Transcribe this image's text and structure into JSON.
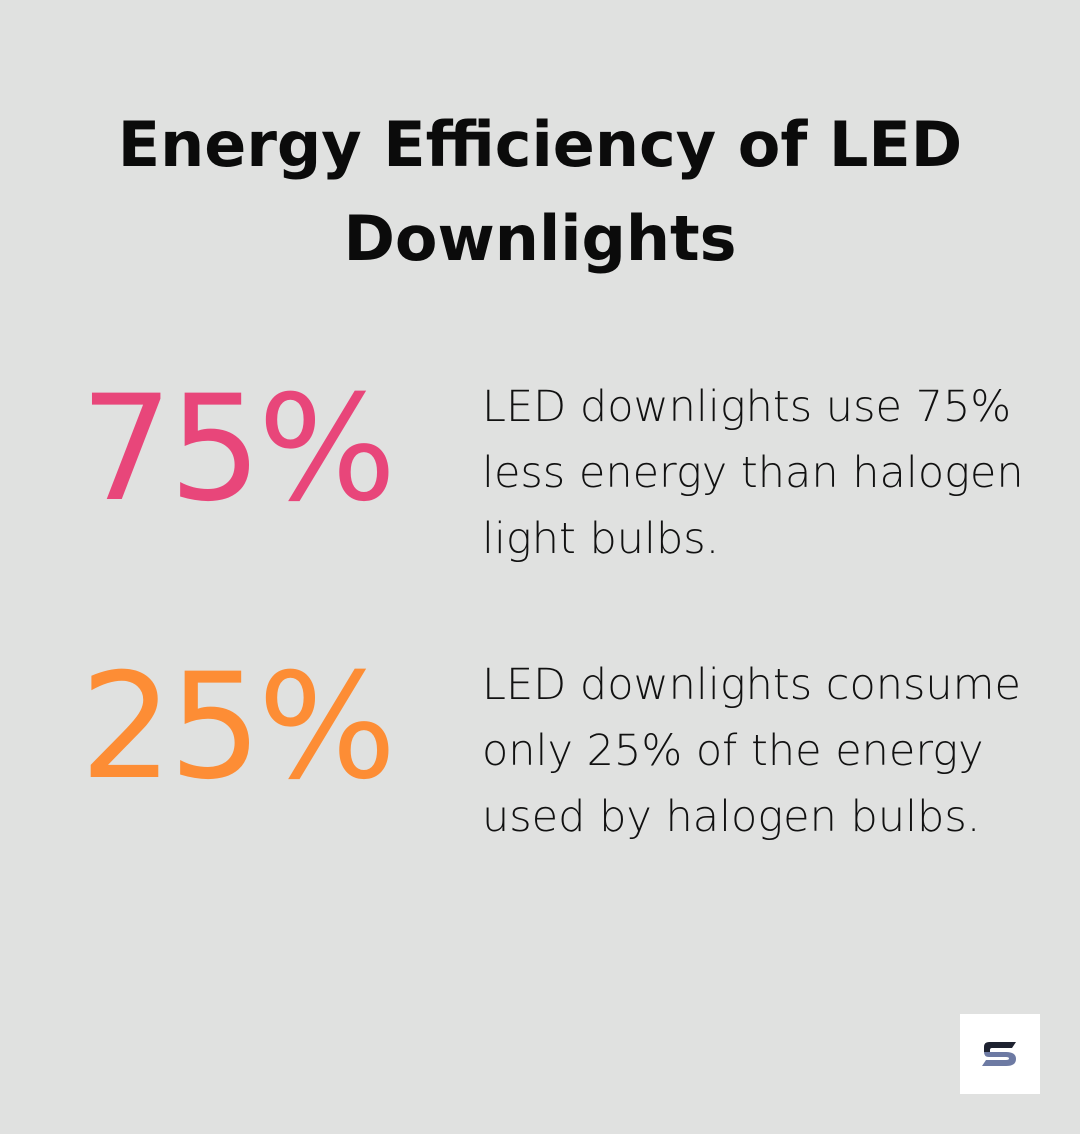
{
  "title": "Energy Efficiency of LED Downlights",
  "colors": {
    "stat1": "#e8467a",
    "stat2": "#fd8d35",
    "logo_dark": "#1e2230",
    "logo_accent": "#6d7aa3"
  },
  "stats": [
    {
      "value": "75%",
      "description": "LED downlights use 75% less energy than halogen light bulbs."
    },
    {
      "value": "25%",
      "description": "LED downlights consume only 25% of the energy used by halogen bulbs."
    }
  ],
  "logo": {
    "icon": "brand-s-logo-icon"
  }
}
